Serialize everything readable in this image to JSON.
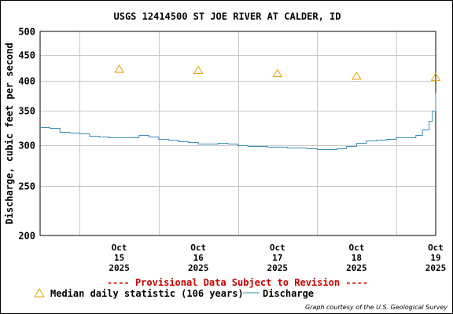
{
  "chart_data": {
    "type": "line",
    "title": "USGS 12414500 ST JOE RIVER AT CALDER, ID",
    "ylabel": "Discharge, cubic feet per second",
    "y_scale": "log",
    "ylim": [
      200,
      500
    ],
    "y_ticks": [
      200,
      250,
      300,
      350,
      400,
      450,
      500
    ],
    "xlim": [
      "2025-10-14 12:00",
      "2025-10-19 12:00"
    ],
    "x_ticks": [
      {
        "value": "2025-10-15",
        "lines": [
          "Oct",
          "15",
          "2025"
        ]
      },
      {
        "value": "2025-10-16",
        "lines": [
          "Oct",
          "16",
          "2025"
        ]
      },
      {
        "value": "2025-10-17",
        "lines": [
          "Oct",
          "17",
          "2025"
        ]
      },
      {
        "value": "2025-10-18",
        "lines": [
          "Oct",
          "18",
          "2025"
        ]
      },
      {
        "value": "2025-10-19",
        "lines": [
          "Oct",
          "19",
          "2025"
        ]
      }
    ],
    "grid": true,
    "series": [
      {
        "name": "Discharge",
        "color": "#3a8fb5",
        "points": [
          [
            "2025-10-14 12:00",
            325
          ],
          [
            "2025-10-14 15:00",
            324
          ],
          [
            "2025-10-14 18:00",
            318
          ],
          [
            "2025-10-14 21:00",
            317
          ],
          [
            "2025-10-15 00:00",
            316
          ],
          [
            "2025-10-15 03:00",
            313
          ],
          [
            "2025-10-15 06:00",
            312
          ],
          [
            "2025-10-15 09:00",
            311
          ],
          [
            "2025-10-15 12:00",
            311
          ],
          [
            "2025-10-15 15:00",
            311
          ],
          [
            "2025-10-15 18:00",
            314
          ],
          [
            "2025-10-15 21:00",
            312
          ],
          [
            "2025-10-16 00:00",
            308
          ],
          [
            "2025-10-16 03:00",
            307
          ],
          [
            "2025-10-16 06:00",
            305
          ],
          [
            "2025-10-16 09:00",
            304
          ],
          [
            "2025-10-16 12:00",
            302
          ],
          [
            "2025-10-16 15:00",
            302
          ],
          [
            "2025-10-16 18:00",
            303
          ],
          [
            "2025-10-16 21:00",
            302
          ],
          [
            "2025-10-17 00:00",
            300
          ],
          [
            "2025-10-17 03:00",
            299
          ],
          [
            "2025-10-17 06:00",
            299
          ],
          [
            "2025-10-17 09:00",
            298
          ],
          [
            "2025-10-17 12:00",
            298
          ],
          [
            "2025-10-17 15:00",
            297
          ],
          [
            "2025-10-17 18:00",
            297
          ],
          [
            "2025-10-17 21:00",
            296
          ],
          [
            "2025-10-18 00:00",
            295
          ],
          [
            "2025-10-18 03:00",
            295
          ],
          [
            "2025-10-18 06:00",
            296
          ],
          [
            "2025-10-18 09:00",
            299
          ],
          [
            "2025-10-18 12:00",
            303
          ],
          [
            "2025-10-18 15:00",
            306
          ],
          [
            "2025-10-18 18:00",
            307
          ],
          [
            "2025-10-18 21:00",
            308
          ],
          [
            "2025-10-19 00:00",
            311
          ],
          [
            "2025-10-19 03:00",
            311
          ],
          [
            "2025-10-19 06:00",
            314
          ],
          [
            "2025-10-19 08:00",
            322
          ],
          [
            "2025-10-19 10:00",
            335
          ],
          [
            "2025-10-19 11:00",
            350
          ],
          [
            "2025-10-19 12:00",
            380
          ]
        ]
      },
      {
        "name": "Median daily statistic (106 years)",
        "color": "#e8a000",
        "marker": "triangle",
        "points": [
          [
            "2025-10-15",
            422
          ],
          [
            "2025-10-16",
            420
          ],
          [
            "2025-10-17",
            414
          ],
          [
            "2025-10-18",
            409
          ],
          [
            "2025-10-19",
            407
          ]
        ]
      }
    ]
  },
  "notice": "---- Provisional Data Subject to Revision ----",
  "notice_color": "#cc0000",
  "legend": {
    "median_label": "Median daily statistic (106 years)",
    "discharge_label": "Discharge"
  },
  "credit": "Graph courtesy of the U.S. Geological Survey"
}
